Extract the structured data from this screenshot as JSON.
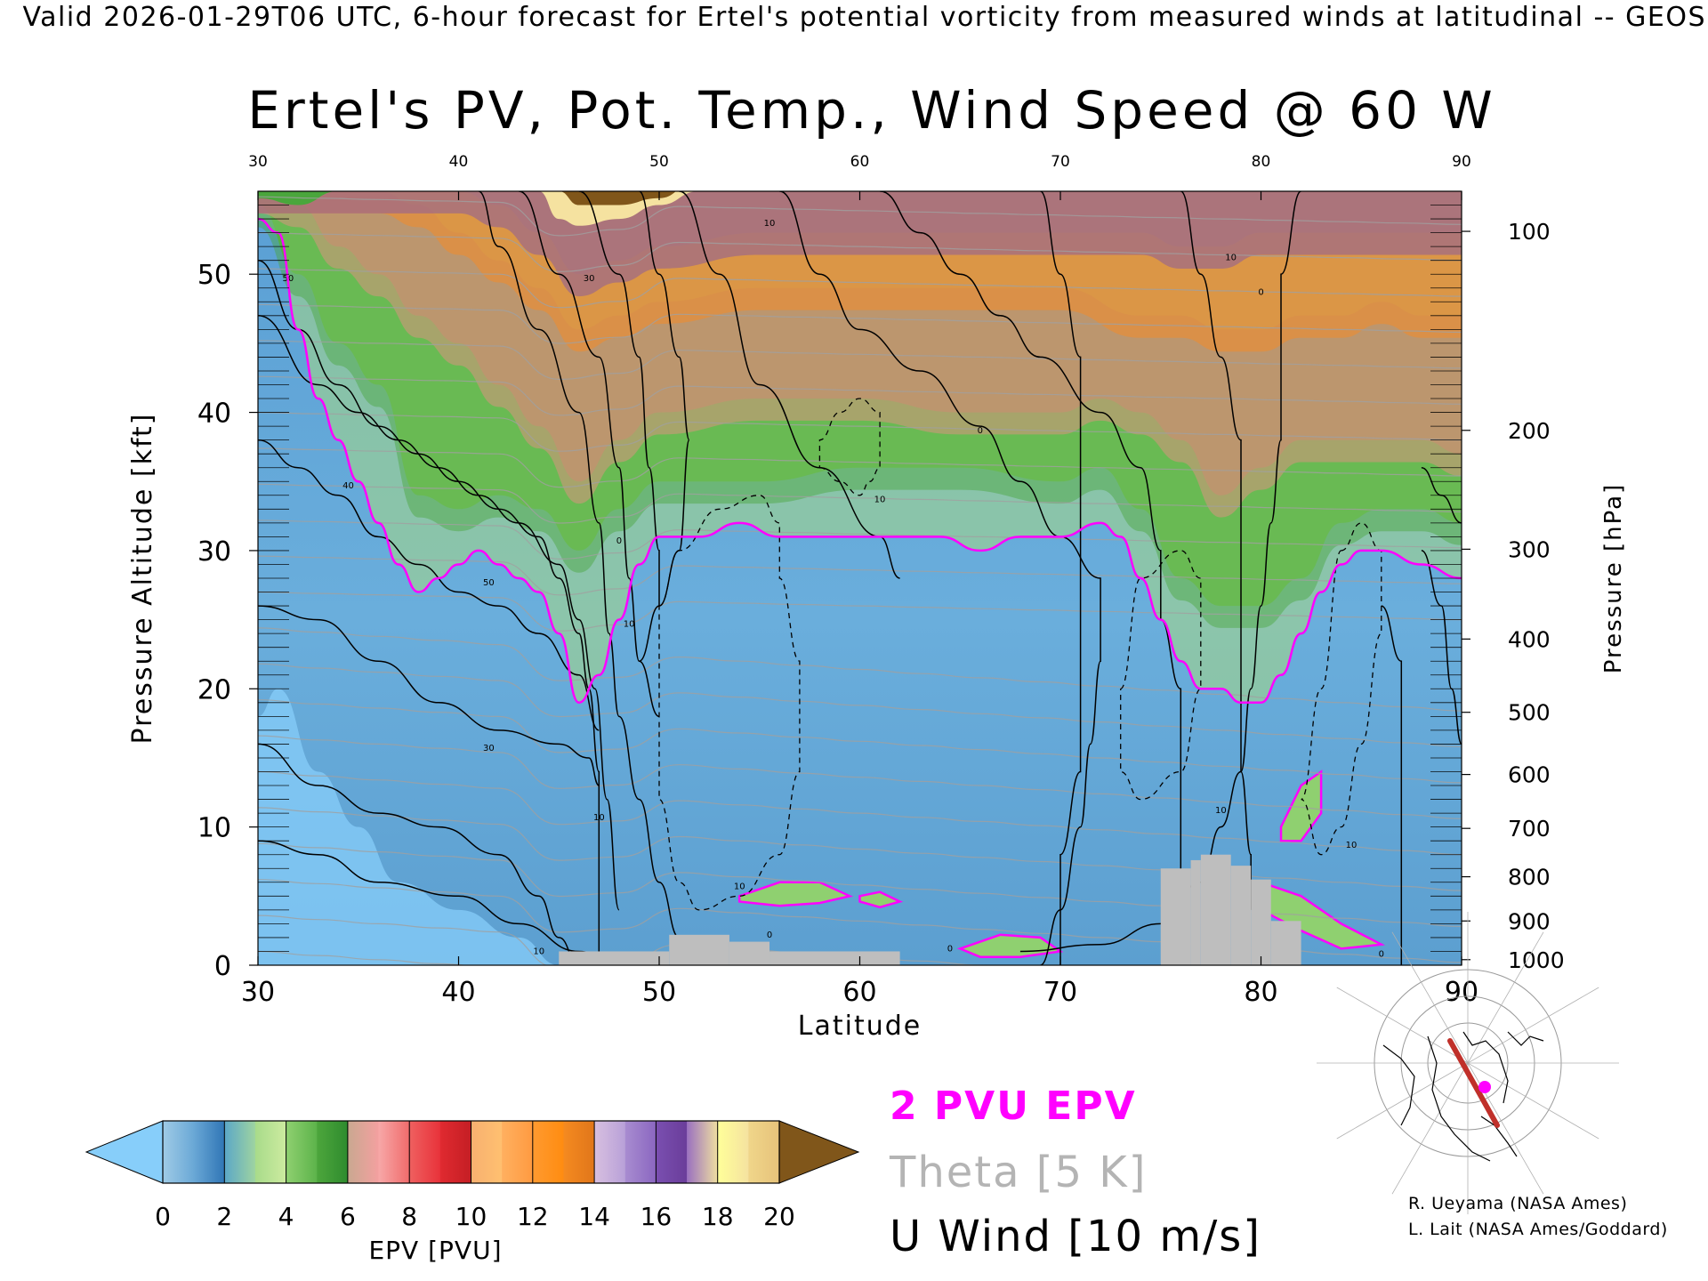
{
  "header": {
    "valid_line": "Valid 2026-01-29T06 UTC, 6-hour forecast for Ertel's potential vorticity from measured winds at latitudinal -- GEOS"
  },
  "chart_data": {
    "type": "heatmap",
    "title": "Ertel's PV, Pot. Temp., Wind Speed @ 60 W",
    "xlabel": "Latitude",
    "ylabel_left": "Pressure Altitude [kft]",
    "ylabel_right": "Pressure [hPa]",
    "xlim": [
      30,
      90
    ],
    "ylim": [
      0,
      56
    ],
    "x_ticks": [
      30,
      40,
      50,
      60,
      70,
      80,
      90
    ],
    "y_ticks": [
      0,
      10,
      20,
      30,
      40,
      50
    ],
    "pressure_ticks": [
      {
        "hpa": 100,
        "kft": 53.1
      },
      {
        "hpa": 200,
        "kft": 38.7
      },
      {
        "hpa": 300,
        "kft": 30.1
      },
      {
        "hpa": 400,
        "kft": 23.6
      },
      {
        "hpa": 500,
        "kft": 18.3
      },
      {
        "hpa": 600,
        "kft": 13.8
      },
      {
        "hpa": 700,
        "kft": 9.9
      },
      {
        "hpa": 800,
        "kft": 6.4
      },
      {
        "hpa": 900,
        "kft": 3.2
      },
      {
        "hpa": 1000,
        "kft": 0.4
      }
    ],
    "colorbar": {
      "label": "EPV [PVU]",
      "ticks": [
        0,
        2,
        4,
        6,
        8,
        10,
        12,
        14,
        16,
        18,
        20
      ],
      "under_color": "#87cefa",
      "over_color": "#80561a",
      "bins": [
        {
          "lo": 0,
          "hi": 1,
          "c1": "#9fcbe6",
          "c2": "#6aa8d6"
        },
        {
          "lo": 1,
          "hi": 2,
          "c1": "#6aa8d6",
          "c2": "#2f75b5"
        },
        {
          "lo": 2,
          "hi": 3,
          "c1": "#5ba7c8",
          "c2": "#9fd4a0"
        },
        {
          "lo": 3,
          "hi": 4,
          "c1": "#a8db8a",
          "c2": "#cdeba0"
        },
        {
          "lo": 4,
          "hi": 5,
          "c1": "#8fd070",
          "c2": "#5cb34a"
        },
        {
          "lo": 5,
          "hi": 6,
          "c1": "#4da63c",
          "c2": "#2e8b2e"
        },
        {
          "lo": 6,
          "hi": 7,
          "c1": "#c9a890",
          "c2": "#f4a0a0"
        },
        {
          "lo": 7,
          "hi": 8,
          "c1": "#f7a8a8",
          "c2": "#f06a6a"
        },
        {
          "lo": 8,
          "hi": 9,
          "c1": "#ef6060",
          "c2": "#e8323a"
        },
        {
          "lo": 9,
          "hi": 10,
          "c1": "#e02a30",
          "c2": "#c41e24"
        },
        {
          "lo": 10,
          "hi": 11,
          "c1": "#f7b070",
          "c2": "#ffc070"
        },
        {
          "lo": 11,
          "hi": 12,
          "c1": "#ffb060",
          "c2": "#ff9a40"
        },
        {
          "lo": 12,
          "hi": 13,
          "c1": "#ff9a30",
          "c2": "#ff8c10"
        },
        {
          "lo": 13,
          "hi": 14,
          "c1": "#f58a20",
          "c2": "#e0761a"
        },
        {
          "lo": 14,
          "hi": 15,
          "c1": "#d8c0e0",
          "c2": "#b8a0d8"
        },
        {
          "lo": 15,
          "hi": 16,
          "c1": "#a88cd0",
          "c2": "#8a66c0"
        },
        {
          "lo": 16,
          "hi": 17,
          "c1": "#7a4fb0",
          "c2": "#6a3d9a"
        },
        {
          "lo": 17,
          "hi": 18,
          "c1": "#9a70c0",
          "c2": "#f0e0a0"
        },
        {
          "lo": 18,
          "hi": 19,
          "c1": "#ffff99",
          "c2": "#f5e2a0"
        },
        {
          "lo": 19,
          "hi": 20,
          "c1": "#f0d68a",
          "c2": "#e6c27a"
        }
      ]
    },
    "pv2_tropopause_kft": [
      [
        30,
        54
      ],
      [
        31,
        53
      ],
      [
        32,
        46
      ],
      [
        33,
        41
      ],
      [
        34,
        38
      ],
      [
        35,
        35
      ],
      [
        36,
        32
      ],
      [
        37,
        29
      ],
      [
        38,
        27
      ],
      [
        39,
        28
      ],
      [
        40,
        29
      ],
      [
        41,
        30
      ],
      [
        42,
        29
      ],
      [
        43,
        28
      ],
      [
        44,
        27
      ],
      [
        45,
        24
      ],
      [
        46,
        19
      ],
      [
        47,
        21
      ],
      [
        48,
        25
      ],
      [
        49,
        29
      ],
      [
        50,
        31
      ],
      [
        51,
        31
      ],
      [
        52,
        31
      ],
      [
        54,
        32
      ],
      [
        56,
        31
      ],
      [
        58,
        31
      ],
      [
        60,
        31
      ],
      [
        62,
        31
      ],
      [
        64,
        31
      ],
      [
        66,
        30
      ],
      [
        68,
        31
      ],
      [
        70,
        31
      ],
      [
        72,
        32
      ],
      [
        73,
        31
      ],
      [
        74,
        28
      ],
      [
        75,
        25
      ],
      [
        76,
        22
      ],
      [
        77,
        20
      ],
      [
        78,
        20
      ],
      [
        79,
        19
      ],
      [
        80,
        19
      ],
      [
        81,
        21
      ],
      [
        82,
        24
      ],
      [
        83,
        27
      ],
      [
        84,
        29
      ],
      [
        85,
        30
      ],
      [
        86,
        30
      ],
      [
        88,
        29
      ],
      [
        90,
        28
      ]
    ],
    "upper_band_tops_kft": [
      {
        "name": "green",
        "pv": 4,
        "pts": [
          [
            30,
            55
          ],
          [
            32,
            50
          ],
          [
            34,
            45
          ],
          [
            36,
            42
          ],
          [
            38,
            34
          ],
          [
            40,
            33
          ],
          [
            42,
            34
          ],
          [
            44,
            33
          ],
          [
            46,
            30
          ],
          [
            48,
            33
          ],
          [
            50,
            35
          ],
          [
            55,
            35
          ],
          [
            60,
            36
          ],
          [
            65,
            36
          ],
          [
            70,
            35
          ],
          [
            72,
            36
          ],
          [
            74,
            33
          ],
          [
            76,
            28
          ],
          [
            78,
            26
          ],
          [
            80,
            26
          ],
          [
            82,
            28
          ],
          [
            84,
            32
          ],
          [
            86,
            33
          ],
          [
            88,
            33
          ],
          [
            90,
            32
          ]
        ]
      },
      {
        "name": "red",
        "pv": 8,
        "pts": [
          [
            30,
            56
          ],
          [
            32,
            55
          ],
          [
            34,
            52
          ],
          [
            36,
            50
          ],
          [
            38,
            47
          ],
          [
            40,
            45
          ],
          [
            42,
            42
          ],
          [
            44,
            39
          ],
          [
            46,
            35
          ],
          [
            48,
            38
          ],
          [
            50,
            40
          ],
          [
            55,
            41
          ],
          [
            60,
            41
          ],
          [
            65,
            40
          ],
          [
            70,
            40
          ],
          [
            72,
            41
          ],
          [
            74,
            40
          ],
          [
            76,
            38
          ],
          [
            78,
            34
          ],
          [
            80,
            36
          ],
          [
            82,
            38
          ],
          [
            84,
            38
          ],
          [
            86,
            38
          ],
          [
            88,
            38
          ],
          [
            90,
            37
          ]
        ]
      },
      {
        "name": "orange",
        "pv": 12,
        "pts": [
          [
            30,
            56
          ],
          [
            36,
            56
          ],
          [
            38,
            55
          ],
          [
            40,
            53
          ],
          [
            42,
            51
          ],
          [
            44,
            49
          ],
          [
            46,
            46
          ],
          [
            48,
            47
          ],
          [
            50,
            48
          ],
          [
            55,
            49
          ],
          [
            60,
            49
          ],
          [
            65,
            49
          ],
          [
            70,
            49
          ],
          [
            74,
            47
          ],
          [
            76,
            47
          ],
          [
            78,
            46
          ],
          [
            80,
            46
          ],
          [
            82,
            47
          ],
          [
            84,
            47
          ],
          [
            86,
            48
          ],
          [
            88,
            47
          ],
          [
            90,
            47
          ]
        ]
      },
      {
        "name": "purple",
        "pv": 16,
        "pts": [
          [
            30,
            56
          ],
          [
            40,
            56
          ],
          [
            42,
            55
          ],
          [
            44,
            53
          ],
          [
            46,
            50
          ],
          [
            48,
            51
          ],
          [
            50,
            52
          ],
          [
            55,
            53
          ],
          [
            60,
            53
          ],
          [
            65,
            53
          ],
          [
            70,
            53
          ],
          [
            74,
            53
          ],
          [
            76,
            52
          ],
          [
            78,
            52
          ],
          [
            80,
            53
          ],
          [
            82,
            53
          ],
          [
            84,
            53
          ],
          [
            86,
            53
          ],
          [
            88,
            53
          ],
          [
            90,
            53
          ]
        ]
      }
    ],
    "theta_contours_K": [
      300,
      310,
      320,
      330,
      340,
      350,
      360,
      370,
      380,
      390
    ],
    "uwind_contours_ms": [
      -10,
      0,
      10,
      20,
      30,
      40,
      50
    ],
    "uwind_labels": [
      {
        "x": 31.5,
        "y": 49.5,
        "text": "50"
      },
      {
        "x": 34.5,
        "y": 34.5,
        "text": "40"
      },
      {
        "x": 41.5,
        "y": 27.5,
        "text": "50"
      },
      {
        "x": 41.5,
        "y": 15.5,
        "text": "30"
      },
      {
        "x": 46.5,
        "y": 49.5,
        "text": "30"
      },
      {
        "x": 44.0,
        "y": 0.8,
        "text": "10"
      },
      {
        "x": 47.0,
        "y": 10.5,
        "text": "10"
      },
      {
        "x": 48.0,
        "y": 30.5,
        "text": "0"
      },
      {
        "x": 48.5,
        "y": 24.5,
        "text": "10"
      },
      {
        "x": 54.0,
        "y": 5.5,
        "text": "10"
      },
      {
        "x": 55.5,
        "y": 2.0,
        "text": "0"
      },
      {
        "x": 55.5,
        "y": 53.5,
        "text": "10"
      },
      {
        "x": 61.0,
        "y": 33.5,
        "text": "10"
      },
      {
        "x": 66.0,
        "y": 38.5,
        "text": "0"
      },
      {
        "x": 64.5,
        "y": 1.0,
        "text": "0"
      },
      {
        "x": 78.5,
        "y": 51.0,
        "text": "10"
      },
      {
        "x": 78.0,
        "y": 11.0,
        "text": "10"
      },
      {
        "x": 80.0,
        "y": 48.5,
        "text": "0"
      },
      {
        "x": 84.5,
        "y": 8.5,
        "text": "10"
      },
      {
        "x": 86.0,
        "y": 0.6,
        "text": "0"
      }
    ],
    "terrain_kft": [
      {
        "x0": 45.0,
        "x1": 50.5,
        "top": 1.0
      },
      {
        "x0": 50.5,
        "x1": 53.5,
        "top": 2.2
      },
      {
        "x0": 53.5,
        "x1": 55.5,
        "top": 1.7
      },
      {
        "x0": 55.5,
        "x1": 62.0,
        "top": 1.0
      },
      {
        "x0": 75.0,
        "x1": 76.5,
        "top": 7.0
      },
      {
        "x0": 76.5,
        "x1": 77.0,
        "top": 7.6
      },
      {
        "x0": 77.0,
        "x1": 78.5,
        "top": 8.0
      },
      {
        "x0": 78.5,
        "x1": 79.5,
        "top": 7.2
      },
      {
        "x0": 79.5,
        "x1": 80.5,
        "top": 6.2
      },
      {
        "x0": 80.5,
        "x1": 82.0,
        "top": 3.2
      }
    ]
  },
  "legend": {
    "epv": "2 PVU EPV",
    "theta": "Theta [5 K]",
    "uwind": "U Wind [10 m/s]"
  },
  "credits": {
    "line1": "R. Ueyama (NASA Ames)",
    "line2": "L. Lait (NASA Ames/Goddard)"
  },
  "colors": {
    "pv2_line": "#ff00ff",
    "terrain": "#bebebe",
    "theta_line": "#a0a0a0",
    "map_track": "#c0302a",
    "map_marker": "#ff00ff"
  }
}
